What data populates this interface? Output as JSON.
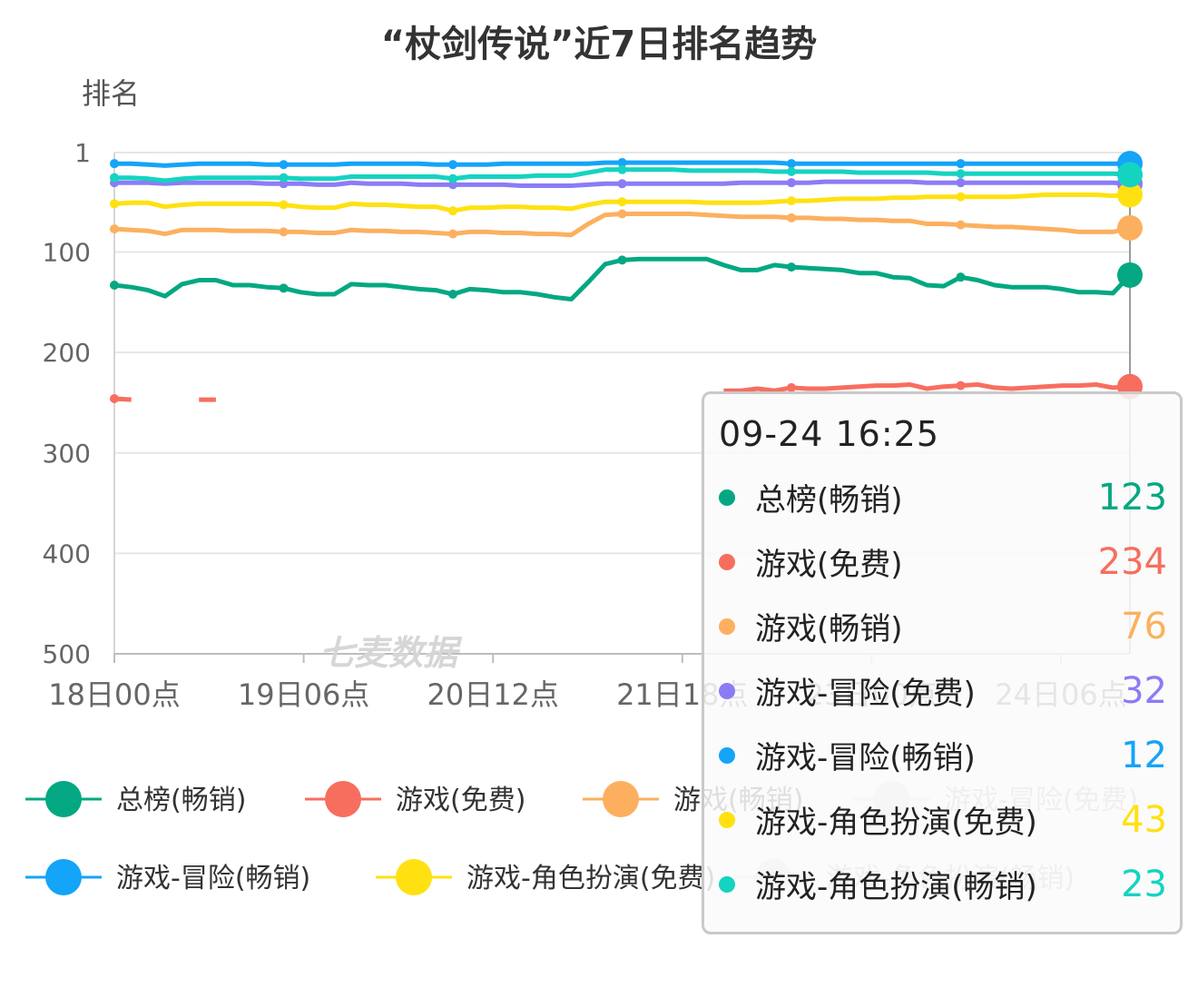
{
  "chart_data": {
    "type": "line",
    "title": "“杖剑传说”近7日排名趋势",
    "ylabel": "排名",
    "ylim": [
      1,
      500
    ],
    "y_inverted": true,
    "y_ticks": [
      "1",
      "100",
      "200",
      "300",
      "400",
      "500"
    ],
    "x_ticks": [
      "18日00点",
      "19日06点",
      "20日12点",
      "21日18点",
      "23日00点",
      "24日06点"
    ],
    "watermark": "七麦数据",
    "grid": true,
    "legend_position": "bottom",
    "series": [
      {
        "name": "总榜(畅销)",
        "color": "#03a882",
        "values": [
          133,
          135,
          138,
          144,
          132,
          128,
          128,
          133,
          133,
          135,
          136,
          140,
          142,
          142,
          132,
          133,
          133,
          135,
          137,
          138,
          142,
          137,
          138,
          140,
          140,
          142,
          145,
          147,
          130,
          112,
          108,
          107,
          107,
          107,
          107,
          107,
          113,
          118,
          118,
          113,
          115,
          116,
          117,
          118,
          121,
          121,
          125,
          126,
          133,
          134,
          125,
          128,
          133,
          135,
          135,
          135,
          137,
          140,
          140,
          141,
          123
        ]
      },
      {
        "name": "游戏(免费)",
        "color": "#f76e5f",
        "values": [
          246,
          247,
          null,
          null,
          null,
          247,
          247,
          null,
          null,
          null,
          null,
          null,
          null,
          null,
          null,
          null,
          null,
          null,
          null,
          null,
          null,
          null,
          null,
          null,
          null,
          null,
          null,
          null,
          null,
          null,
          null,
          null,
          null,
          null,
          null,
          null,
          238,
          238,
          236,
          238,
          235,
          236,
          236,
          235,
          234,
          233,
          233,
          232,
          236,
          234,
          233,
          232,
          235,
          236,
          235,
          234,
          233,
          233,
          232,
          235,
          234
        ]
      },
      {
        "name": "游戏(畅销)",
        "color": "#fcb05f",
        "values": [
          77,
          78,
          79,
          82,
          78,
          78,
          78,
          79,
          79,
          79,
          80,
          80,
          81,
          81,
          78,
          79,
          79,
          80,
          80,
          81,
          82,
          80,
          80,
          81,
          81,
          82,
          82,
          83,
          72,
          63,
          62,
          62,
          62,
          62,
          62,
          63,
          64,
          65,
          65,
          65,
          66,
          66,
          67,
          67,
          68,
          68,
          69,
          69,
          72,
          72,
          73,
          74,
          75,
          75,
          76,
          77,
          78,
          80,
          80,
          80,
          76
        ]
      },
      {
        "name": "游戏-冒险(免费)",
        "color": "#8b7cf6",
        "values": [
          31,
          31,
          31,
          32,
          31,
          31,
          31,
          31,
          31,
          32,
          32,
          32,
          33,
          33,
          31,
          32,
          32,
          32,
          33,
          33,
          33,
          33,
          33,
          33,
          34,
          34,
          34,
          34,
          33,
          32,
          32,
          32,
          32,
          32,
          32,
          32,
          32,
          31,
          31,
          31,
          31,
          31,
          30,
          30,
          30,
          30,
          30,
          30,
          31,
          31,
          31,
          31,
          31,
          31,
          31,
          31,
          31,
          31,
          31,
          31,
          32
        ]
      },
      {
        "name": "游戏-冒险(畅销)",
        "color": "#14a4f8",
        "values": [
          12,
          12,
          13,
          14,
          13,
          12,
          12,
          12,
          12,
          13,
          13,
          13,
          13,
          13,
          12,
          12,
          12,
          12,
          12,
          13,
          13,
          13,
          13,
          12,
          12,
          12,
          12,
          12,
          12,
          11,
          11,
          11,
          11,
          11,
          11,
          11,
          11,
          11,
          11,
          11,
          12,
          12,
          12,
          12,
          12,
          12,
          12,
          12,
          12,
          12,
          12,
          12,
          12,
          12,
          12,
          12,
          12,
          12,
          12,
          12,
          12
        ]
      },
      {
        "name": "游戏-角色扮演(免费)",
        "color": "#ffe111",
        "values": [
          52,
          51,
          51,
          55,
          53,
          52,
          52,
          52,
          52,
          52,
          53,
          55,
          56,
          56,
          52,
          53,
          53,
          54,
          55,
          55,
          59,
          56,
          56,
          55,
          55,
          56,
          56,
          57,
          53,
          50,
          50,
          50,
          50,
          50,
          50,
          51,
          51,
          51,
          51,
          50,
          49,
          49,
          48,
          47,
          47,
          47,
          46,
          46,
          45,
          45,
          45,
          45,
          45,
          45,
          44,
          43,
          43,
          43,
          43,
          44,
          43
        ]
      },
      {
        "name": "游戏-角色扮演(畅销)",
        "color": "#15d3c1",
        "values": [
          26,
          26,
          27,
          29,
          27,
          26,
          26,
          26,
          26,
          26,
          26,
          27,
          27,
          27,
          25,
          25,
          25,
          25,
          25,
          25,
          27,
          25,
          25,
          25,
          25,
          24,
          24,
          24,
          21,
          18,
          18,
          18,
          18,
          18,
          19,
          19,
          19,
          19,
          19,
          20,
          20,
          20,
          20,
          20,
          21,
          21,
          21,
          21,
          21,
          22,
          22,
          22,
          22,
          22,
          22,
          22,
          22,
          22,
          22,
          22,
          23
        ]
      }
    ],
    "tooltip": {
      "time": "09-24 16:25",
      "rows": [
        {
          "label": "总榜(畅销)",
          "value": "123",
          "color": "#03a882"
        },
        {
          "label": "游戏(免费)",
          "value": "234",
          "color": "#f76e5f"
        },
        {
          "label": "游戏(畅销)",
          "value": "76",
          "color": "#fcb05f"
        },
        {
          "label": "游戏-冒险(免费)",
          "value": "32",
          "color": "#8b7cf6"
        },
        {
          "label": "游戏-冒险(畅销)",
          "value": "12",
          "color": "#14a4f8"
        },
        {
          "label": "游戏-角色扮演(免费)",
          "value": "43",
          "color": "#ffe111"
        },
        {
          "label": "游戏-角色扮演(畅销)",
          "value": "23",
          "color": "#15d3c1"
        }
      ]
    }
  }
}
